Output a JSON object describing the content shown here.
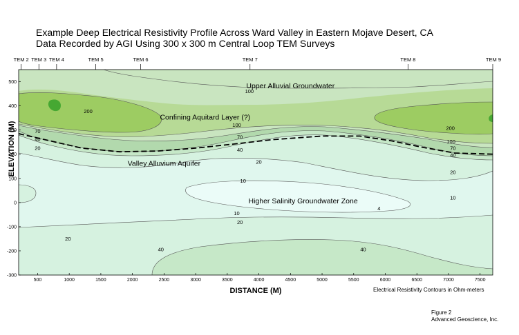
{
  "title_line1": "Example Deep Electrical Resistivity Profile  Across Ward Valley in Eastern Mojave Desert, CA",
  "title_line2": "Data Recorded by AGI Using 300 x 300 m Central Loop TEM Surveys",
  "legend_note": "Electrical Resistivity Contours in Ohm-meters",
  "figure_label": "Figure 2",
  "company": "Advanced Geoscience, Inc.",
  "colors": {
    "c_lt4": "#ebfcf8",
    "c_4_10": "#e0f7ee",
    "c_10_20": "#d6f2e0",
    "c_20_40": "#c6e8c8",
    "c_40_70": "#b2d9ad",
    "c_70_100": "#c9e5c0",
    "c_100_200": "#b7da96",
    "c_gt200": "#9dcc62",
    "c_peak": "#46a832",
    "aquitard_line": "#000000"
  },
  "chart_data": {
    "type": "contour",
    "xlabel": "DISTANCE (M)",
    "ylabel": "ELEVATION (M)",
    "xlim": [
      200,
      7700
    ],
    "ylim": [
      -300,
      550
    ],
    "xticks": [
      500,
      1000,
      1500,
      2000,
      2500,
      3000,
      3500,
      4000,
      4500,
      5000,
      5500,
      6000,
      6500,
      7000,
      7500
    ],
    "yticks": [
      -300,
      -200,
      -100,
      0,
      100,
      200,
      300,
      400,
      500
    ],
    "stations": [
      {
        "name": "TEM 2",
        "x": 240
      },
      {
        "name": "TEM 3",
        "x": 520
      },
      {
        "name": "TEM 4",
        "x": 800
      },
      {
        "name": "TEM 5",
        "x": 1420
      },
      {
        "name": "TEM 6",
        "x": 2130
      },
      {
        "name": "TEM 7",
        "x": 3860
      },
      {
        "name": "TEM 8",
        "x": 6360
      },
      {
        "name": "TEM 9",
        "x": 7700
      }
    ],
    "zone_labels": [
      {
        "text": "Upper Alluvial Groundwater",
        "x": 4500,
        "y": 485
      },
      {
        "text": "Confining Aquitard Layer (?)",
        "x": 3150,
        "y": 355
      },
      {
        "text": "Valley Alluvium Aquifer",
        "x": 2500,
        "y": 163
      },
      {
        "text": "Higher Salinity Groundwater Zone",
        "x": 4700,
        "y": 8
      }
    ],
    "contour_labels": [
      {
        "text": "100",
        "x": 3850,
        "y": 460
      },
      {
        "text": "200",
        "x": 1300,
        "y": 378
      },
      {
        "text": "100",
        "x": 3650,
        "y": 320
      },
      {
        "text": "70",
        "x": 3700,
        "y": 270
      },
      {
        "text": "40",
        "x": 3700,
        "y": 218
      },
      {
        "text": "20",
        "x": 4000,
        "y": 168
      },
      {
        "text": "10",
        "x": 3750,
        "y": 90
      },
      {
        "text": "4",
        "x": 5900,
        "y": -25
      },
      {
        "text": "10",
        "x": 3650,
        "y": -45
      },
      {
        "text": "20",
        "x": 3700,
        "y": -82
      },
      {
        "text": "20",
        "x": 980,
        "y": -150
      },
      {
        "text": "40",
        "x": 2450,
        "y": -195
      },
      {
        "text": "40",
        "x": 5650,
        "y": -195
      },
      {
        "text": "70",
        "x": 500,
        "y": 295
      },
      {
        "text": "40",
        "x": 500,
        "y": 262
      },
      {
        "text": "20",
        "x": 500,
        "y": 225
      },
      {
        "text": "200",
        "x": 7030,
        "y": 308
      },
      {
        "text": "100",
        "x": 7040,
        "y": 252
      },
      {
        "text": "70",
        "x": 7070,
        "y": 225
      },
      {
        "text": "40",
        "x": 7070,
        "y": 196
      },
      {
        "text": "20",
        "x": 7070,
        "y": 125
      },
      {
        "text": "10",
        "x": 7070,
        "y": 20
      }
    ],
    "contour_levels": [
      4,
      10,
      20,
      40,
      70,
      100,
      200
    ],
    "aquitard_base": {
      "style": "dashed",
      "points": [
        [
          200,
          285
        ],
        [
          700,
          255
        ],
        [
          1200,
          225
        ],
        [
          1800,
          210
        ],
        [
          2400,
          213
        ],
        [
          3000,
          225
        ],
        [
          3600,
          242
        ],
        [
          4200,
          260
        ],
        [
          5000,
          275
        ],
        [
          5600,
          275
        ],
        [
          6100,
          255
        ],
        [
          6600,
          228
        ],
        [
          7100,
          205
        ],
        [
          7700,
          200
        ]
      ]
    },
    "grid": false
  }
}
